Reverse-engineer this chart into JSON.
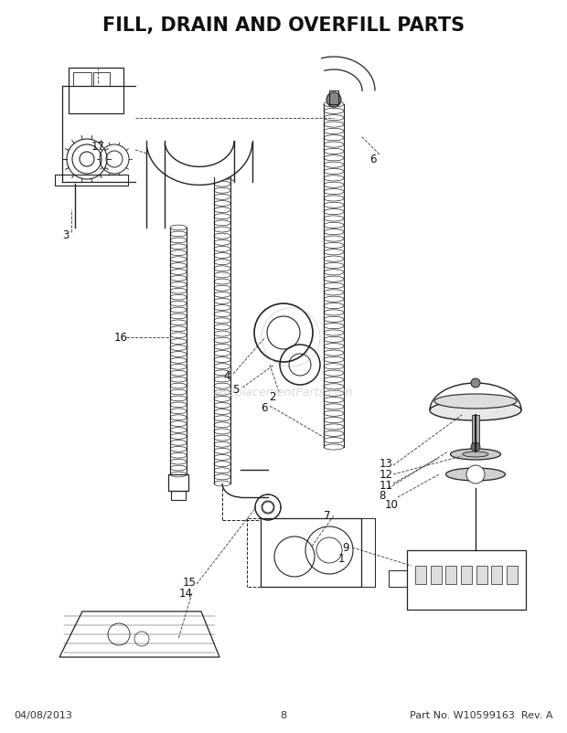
{
  "title": "FILL, DRAIN AND OVERFILL PARTS",
  "title_fontsize": 15,
  "title_fontweight": "bold",
  "background_color": "#ffffff",
  "footer_left": "04/08/2013",
  "footer_center": "8",
  "footer_right": "Part No. W10599163  Rev. A",
  "footer_fontsize": 8,
  "watermark": "eReplacementParts.com",
  "line_color": "#222222",
  "label_fontsize": 8.5
}
